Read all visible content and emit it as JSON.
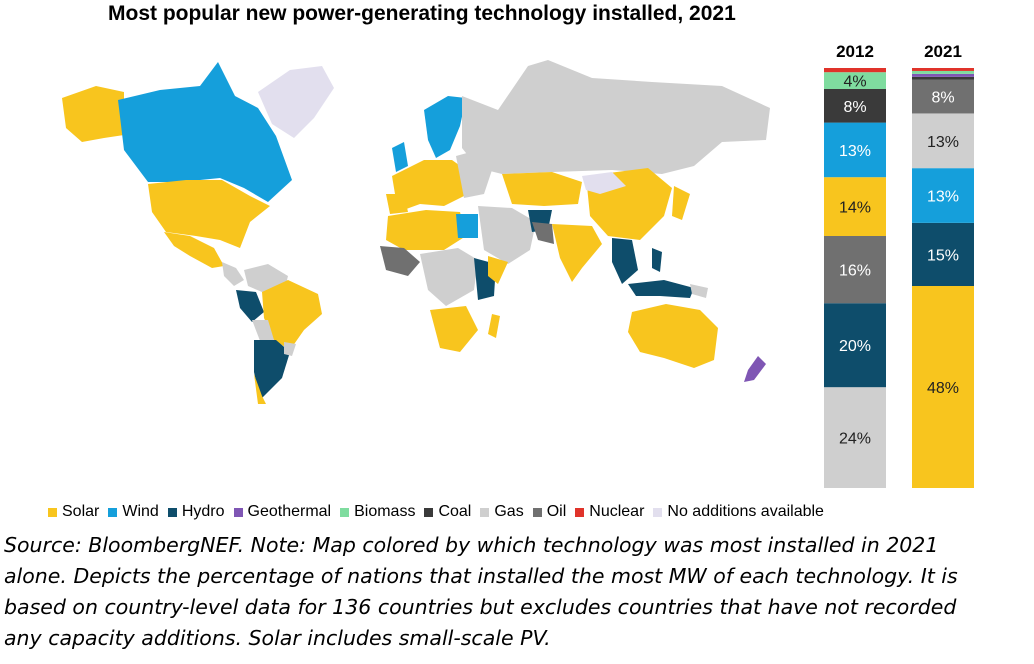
{
  "title": "Most popular new power-generating technology installed, 2021",
  "colors": {
    "Solar": "#f8c51e",
    "Wind": "#159fdb",
    "Hydro": "#0e4d6b",
    "Geothermal": "#7f56b4",
    "Biomass": "#7fdc9f",
    "Coal": "#3a3a3a",
    "Gas": "#cfcfcf",
    "Oil": "#707070",
    "Nuclear": "#e0332a",
    "No additions available": "#e2dfee"
  },
  "legend": [
    "Solar",
    "Wind",
    "Hydro",
    "Geothermal",
    "Biomass",
    "Coal",
    "Gas",
    "Oil",
    "Nuclear",
    "No additions available"
  ],
  "chart_data": {
    "type": "bar",
    "stacked": true,
    "unit": "%",
    "categories": [
      "2012",
      "2021"
    ],
    "series": [
      {
        "name": "Solar",
        "values": [
          14,
          48
        ]
      },
      {
        "name": "Hydro",
        "values": [
          20,
          15
        ]
      },
      {
        "name": "Wind",
        "values": [
          13,
          13
        ]
      },
      {
        "name": "Gas",
        "values": [
          24,
          13
        ]
      },
      {
        "name": "Oil",
        "values": [
          16,
          8
        ]
      },
      {
        "name": "Coal",
        "values": [
          8,
          0.7
        ]
      },
      {
        "name": "Biomass",
        "values": [
          4,
          0.7
        ]
      },
      {
        "name": "Geothermal",
        "values": [
          0,
          0.7
        ]
      },
      {
        "name": "Nuclear",
        "values": [
          1,
          0.7
        ]
      }
    ],
    "stack_order": {
      "2012": [
        "Gas",
        "Hydro",
        "Oil",
        "Solar",
        "Wind",
        "Coal",
        "Biomass",
        "Nuclear"
      ],
      "2021": [
        "Solar",
        "Hydro",
        "Wind",
        "Gas",
        "Oil",
        "Coal",
        "Geothermal",
        "Biomass",
        "Nuclear"
      ]
    },
    "labels": {
      "2012": {
        "Gas": "24%",
        "Hydro": "20%",
        "Oil": "16%",
        "Solar": "14%",
        "Wind": "13%",
        "Coal": "8%",
        "Biomass": "4%"
      },
      "2021": {
        "Solar": "48%",
        "Hydro": "15%",
        "Wind": "13%",
        "Gas": "13%",
        "Oil": "8%"
      }
    }
  },
  "source": [
    "Source: BloombergNEF. Note: Map colored by which technology was most installed in 2021",
    "alone. Depicts the percentage of nations that installed the most MW of each technology. It is",
    "based on country-level data for 136 countries but excludes countries that have not recorded",
    "any capacity additions. Solar includes small-scale PV."
  ]
}
